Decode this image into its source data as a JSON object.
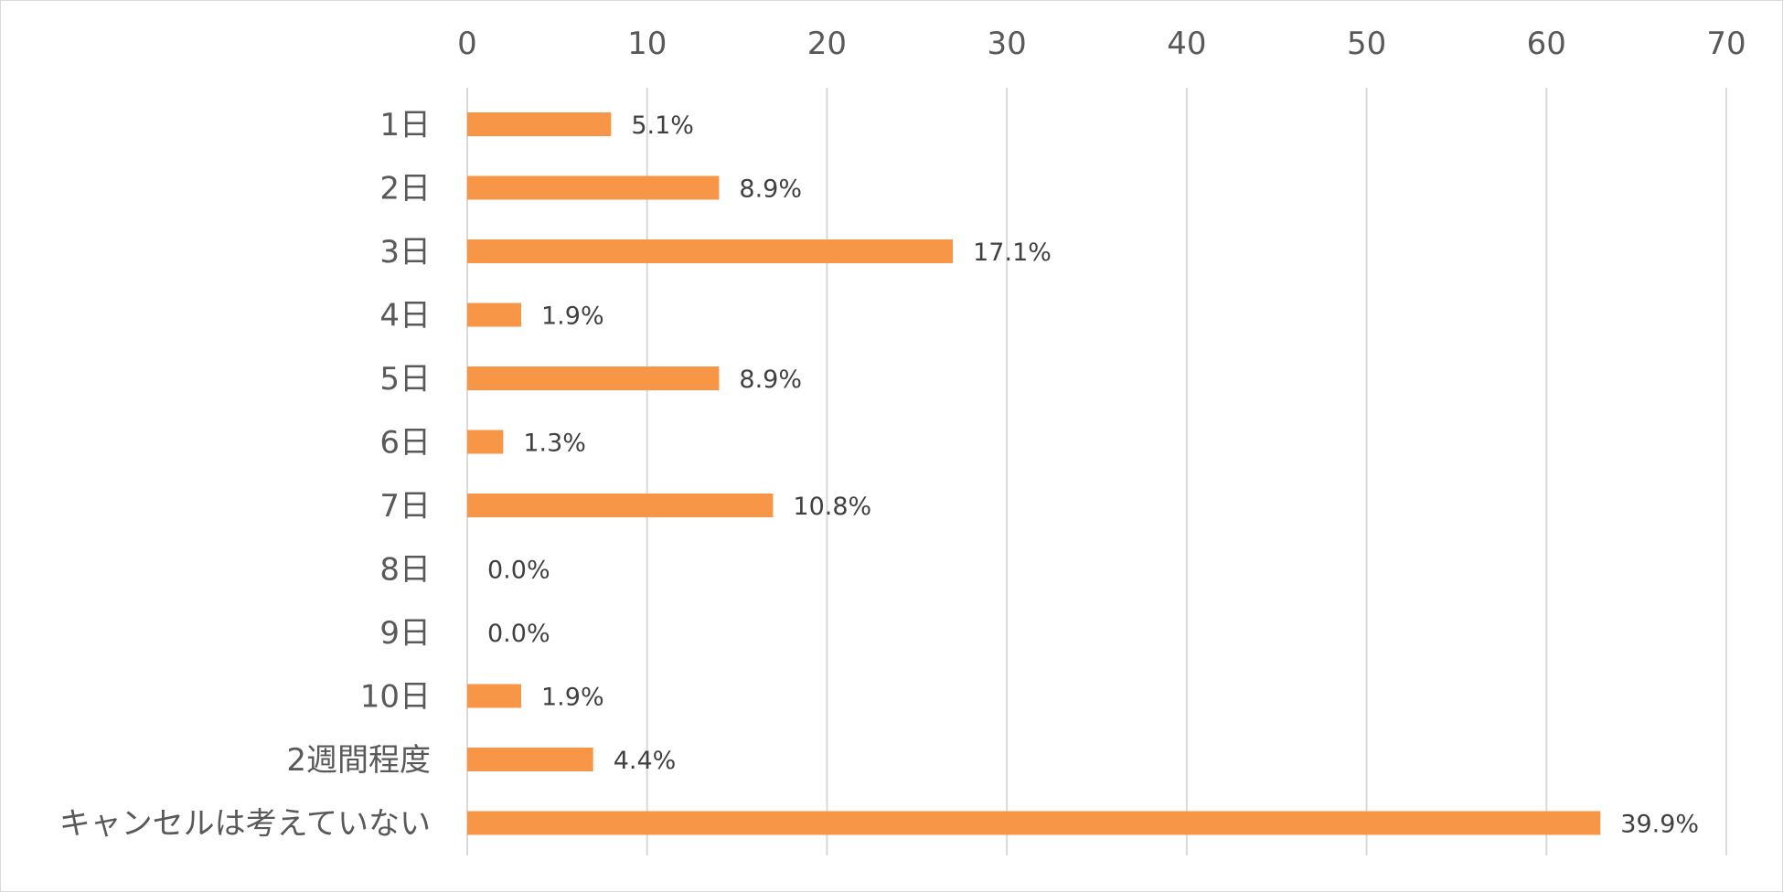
{
  "chart_data": {
    "type": "bar",
    "orientation": "horizontal",
    "categories": [
      "1日",
      "2日",
      "3日",
      "4日",
      "5日",
      "6日",
      "7日",
      "8日",
      "9日",
      "10日",
      "2週間程度",
      "キャンセルは考えていない"
    ],
    "values": [
      8,
      14,
      27,
      3,
      14,
      2,
      17,
      0,
      0,
      3,
      7,
      63
    ],
    "data_labels": [
      "5.1%",
      "8.9%",
      "17.1%",
      "1.9%",
      "8.9%",
      "1.3%",
      "10.8%",
      "0.0%",
      "0.0%",
      "1.9%",
      "4.4%",
      "39.9%"
    ],
    "xlim": [
      0,
      70
    ],
    "x_ticks": [
      0,
      10,
      20,
      30,
      40,
      50,
      60,
      70
    ],
    "x_axis_position": "top",
    "grid": true,
    "legend": "none",
    "bar_color": "#F79646",
    "grid_color": "#D9D9D9",
    "title": "",
    "xlabel": "",
    "ylabel": ""
  }
}
